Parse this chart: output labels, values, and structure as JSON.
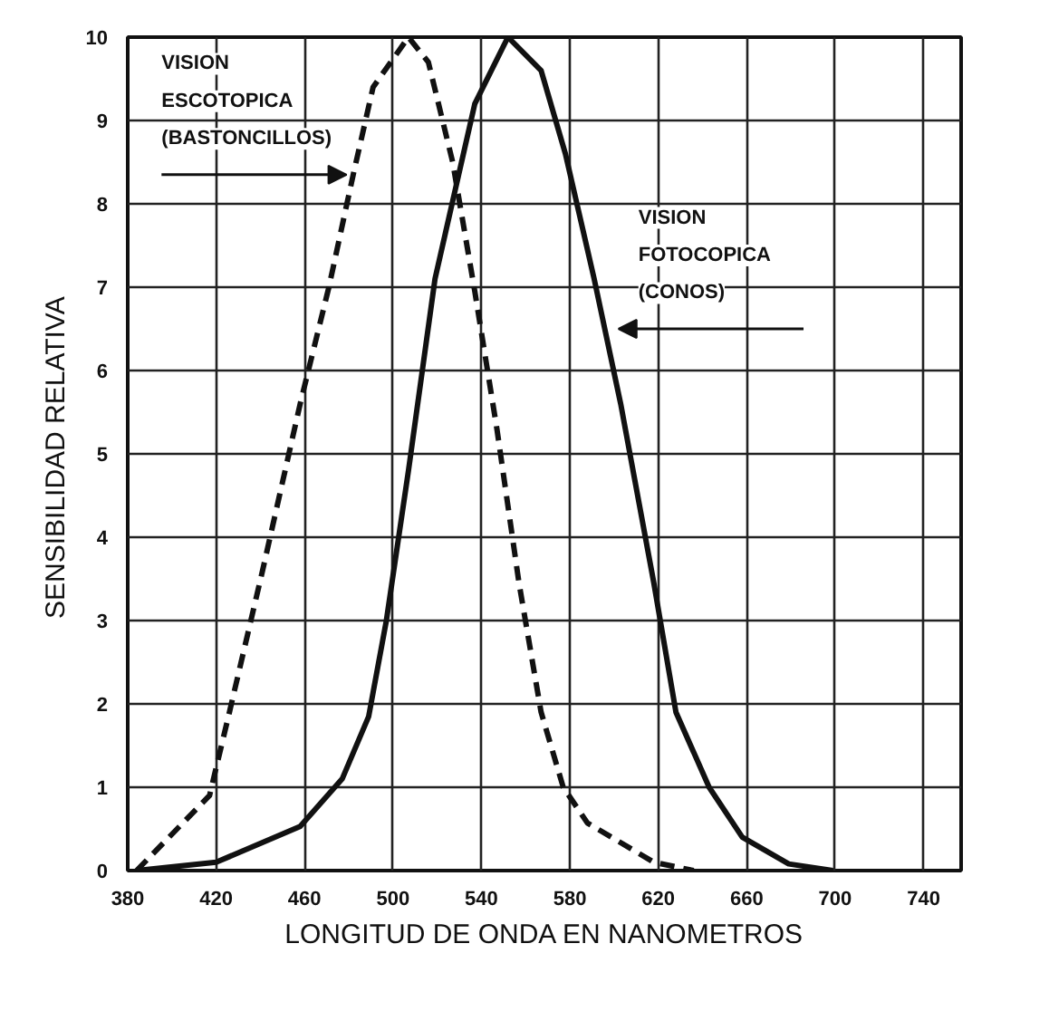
{
  "chart_data": {
    "type": "line",
    "xlabel": "LONGITUD DE ONDA EN NANOMETROS",
    "ylabel": "SENSIBILIDAD  RELATIVA",
    "xlim": [
      380,
      757
    ],
    "xticks": [
      380,
      420,
      460,
      500,
      540,
      580,
      620,
      660,
      700,
      740
    ],
    "ylim": [
      0,
      10
    ],
    "yticks": [
      0,
      1,
      2,
      3,
      4,
      5,
      6,
      7,
      8,
      9,
      10
    ],
    "grid": true,
    "marker": "none",
    "series": [
      {
        "color": "#111111",
        "line_style": "dashed",
        "x": [
          384,
          417,
          426,
          441,
          458,
          471,
          482,
          491,
          507,
          516,
          527,
          537,
          547,
          557,
          567,
          577,
          588,
          618,
          636
        ],
        "values": [
          0,
          0.9,
          1.9,
          3.6,
          5.6,
          7.0,
          8.35,
          9.4,
          10,
          9.7,
          8.5,
          6.95,
          5.3,
          3.45,
          1.9,
          1.0,
          0.57,
          0.1,
          0
        ]
      },
      {
        "color": "#111111",
        "line_style": "solid",
        "x": [
          384,
          420,
          458,
          477,
          489,
          497,
          507,
          519,
          537,
          552,
          567,
          578,
          591,
          603,
          618,
          628,
          643,
          658,
          679,
          699
        ],
        "values": [
          0,
          0.1,
          0.53,
          1.1,
          1.85,
          3.0,
          4.8,
          7.1,
          9.2,
          10,
          9.6,
          8.6,
          7.1,
          5.6,
          3.45,
          1.9,
          1.0,
          0.4,
          0.08,
          0
        ]
      }
    ],
    "annotations": [
      {
        "text": "VISION\nESCOTOPICA\n(BASTONCILLOS)",
        "x": 482,
        "y": 8.35
      },
      {
        "text": "VISION\nFOTOCOPICA\n(CONOS)",
        "x": 599,
        "y": 6.5
      }
    ]
  }
}
